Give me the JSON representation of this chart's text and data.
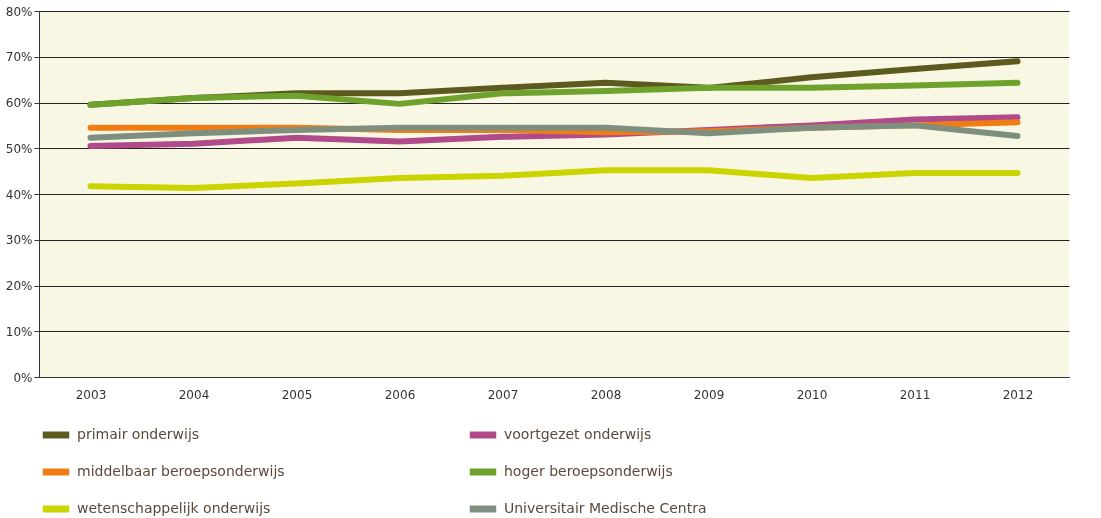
{
  "chart_data": {
    "type": "line",
    "categories": [
      "2003",
      "2004",
      "2005",
      "2006",
      "2007",
      "2008",
      "2009",
      "2010",
      "2011",
      "2012"
    ],
    "series": [
      {
        "name": "primair onderwijs",
        "color": "#5c5a1e",
        "values": [
          59.5,
          61,
          62,
          62,
          63.2,
          64.3,
          63.2,
          65.5,
          67.3,
          69
        ]
      },
      {
        "name": "voortgezet onderwijs",
        "color": "#b04a8a",
        "values": [
          50.5,
          51,
          52.3,
          51.5,
          52.5,
          53,
          54,
          55,
          56.3,
          56.8
        ]
      },
      {
        "name": "middelbaar beroepsonderwijs",
        "color": "#ef7d14",
        "values": [
          54.5,
          54.5,
          54.5,
          54,
          54,
          53.5,
          53.7,
          54.5,
          55,
          55.7
        ]
      },
      {
        "name": "hoger beroepsonderwijs",
        "color": "#6fa22c",
        "values": [
          59.5,
          61,
          61.5,
          59.7,
          62,
          62.5,
          63.2,
          63.2,
          63.7,
          64.3
        ]
      },
      {
        "name": "wetenschappelijk onderwijs",
        "color": "#c9d400",
        "values": [
          41.7,
          41.3,
          42.3,
          43.5,
          44,
          45.2,
          45.2,
          43.5,
          44.6,
          44.6
        ]
      },
      {
        "name": "Universitair Medische Centra",
        "color": "#7f8f7f",
        "values": [
          52.3,
          53.3,
          54,
          54.5,
          54.5,
          54.5,
          53.3,
          54.5,
          55,
          52.7
        ]
      }
    ],
    "ylim": [
      0,
      80
    ],
    "yticks": [
      {
        "value": 0,
        "label": "0%"
      },
      {
        "value": 10,
        "label": "10%"
      },
      {
        "value": 20,
        "label": "20%"
      },
      {
        "value": 30,
        "label": "30%"
      },
      {
        "value": 40,
        "label": "40%"
      },
      {
        "value": 50,
        "label": "50%"
      },
      {
        "value": 60,
        "label": "60%"
      },
      {
        "value": 70,
        "label": "70%"
      },
      {
        "value": 80,
        "label": "80%"
      }
    ],
    "grid": "y",
    "legend": "bottom",
    "marker": "none",
    "line_style": "solid"
  }
}
